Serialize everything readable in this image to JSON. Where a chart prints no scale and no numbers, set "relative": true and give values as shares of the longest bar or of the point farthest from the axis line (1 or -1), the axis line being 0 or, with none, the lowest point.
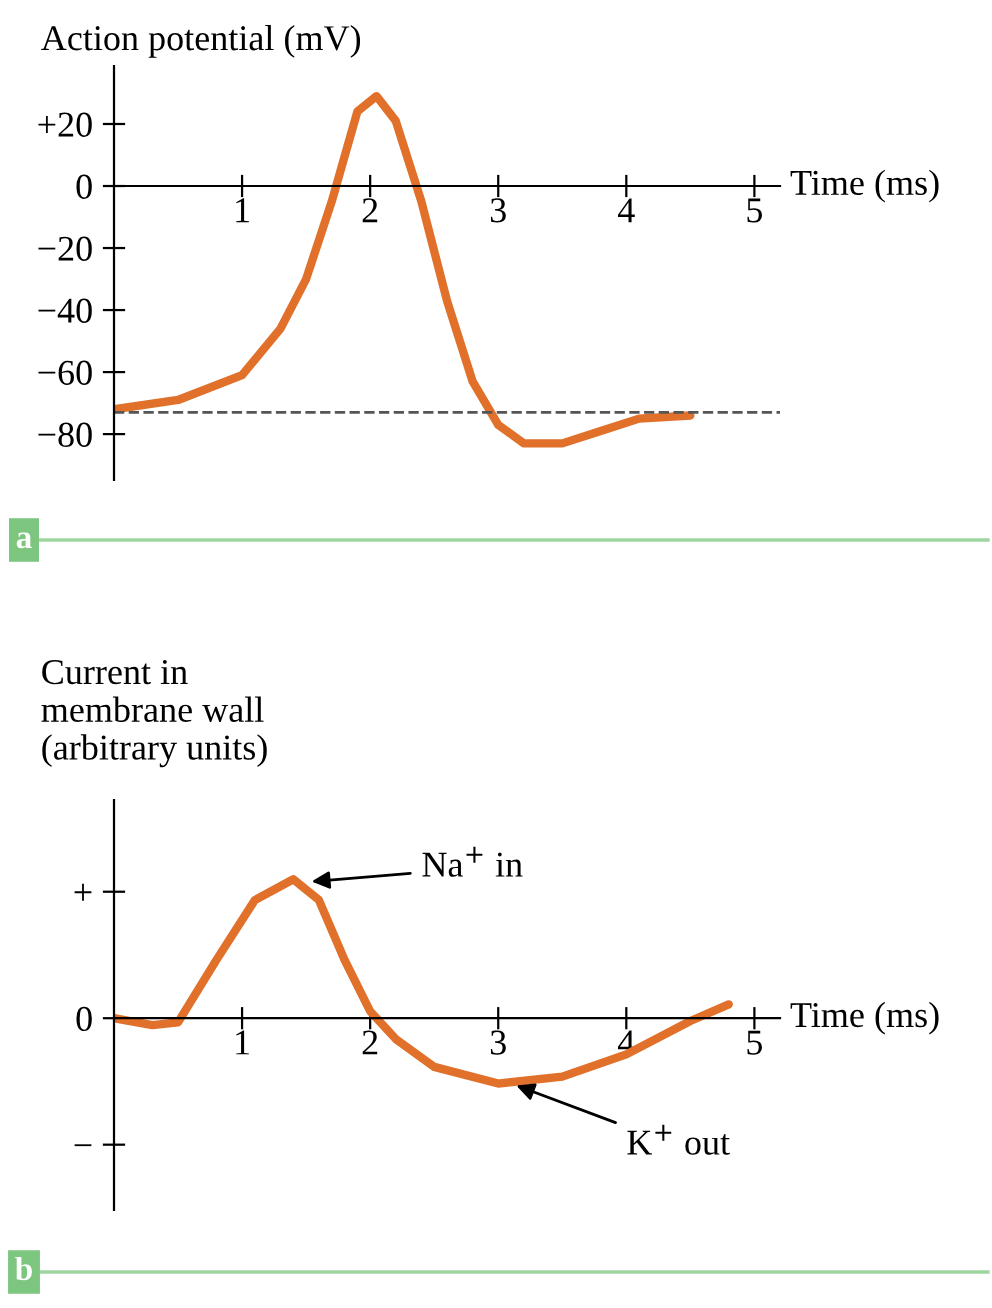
{
  "chart_data": [
    {
      "type": "line",
      "ylabel": "Action potential (mV)",
      "xlabel": "Time (ms)",
      "annotations": [
        "a"
      ],
      "x": [
        0,
        0.5,
        1.0,
        1.3,
        1.5,
        1.7,
        1.9,
        2.05,
        2.2,
        2.4,
        2.6,
        2.8,
        3.0,
        3.2,
        3.5,
        3.8,
        4.1,
        4.5
      ],
      "series": [
        {
          "color": "#e0702a",
          "values": [
            -72,
            -69,
            -61,
            -46,
            -30,
            -5,
            24,
            29,
            21,
            -5,
            -37,
            -63,
            -77,
            -83,
            -83,
            -79,
            -75,
            -74
          ]
        }
      ],
      "xlim": [
        0,
        5.2
      ],
      "ylim": [
        -94.8,
        38.7
      ],
      "xticks": [
        1,
        2,
        3,
        4,
        5
      ],
      "yticks": [
        {
          "value": 20,
          "label": "+20"
        },
        0,
        {
          "value": -20,
          "label": "−20"
        },
        {
          "value": -40,
          "label": "−40"
        },
        {
          "value": -60,
          "label": "−60"
        },
        {
          "value": -80,
          "label": "−80"
        }
      ],
      "ref_lines": [
        {
          "axis": "y",
          "value": -73,
          "label": null,
          "color": "#555555",
          "line_style": "dashed"
        }
      ],
      "grid": false,
      "legend": false,
      "marker": "none",
      "line_style": "solid"
    },
    {
      "type": "line",
      "ylabel": "Current in\nmembrane wall\n(arbitrary units)",
      "xlabel": "Time (ms)",
      "annotations": [
        "+",
        "0",
        "−",
        {
          "text": "Na$^{+}$ in",
          "x": 1.5,
          "y": 0.98
        },
        {
          "text": "K$^{+}$ out",
          "x": 3.1,
          "y": -0.47
        },
        "b"
      ],
      "x": [
        0,
        0.3,
        0.5,
        0.8,
        1.1,
        1.4,
        1.6,
        1.8,
        2.0,
        2.2,
        2.5,
        3.0,
        3.5,
        4.0,
        4.5,
        4.8
      ],
      "series": [
        {
          "color": "#e0702a",
          "values": [
            0,
            -0.05,
            -0.03,
            0.42,
            0.85,
            1,
            0.85,
            0.42,
            0.05,
            -0.15,
            -0.35,
            -0.47,
            -0.42,
            -0.26,
            -0.02,
            0.1
          ]
        }
      ],
      "relative": true,
      "xlim": [
        0,
        5.2
      ],
      "xticks": [
        1,
        2,
        3,
        4,
        5
      ],
      "grid": false,
      "legend": false,
      "marker": "none",
      "line_style": "solid"
    }
  ]
}
